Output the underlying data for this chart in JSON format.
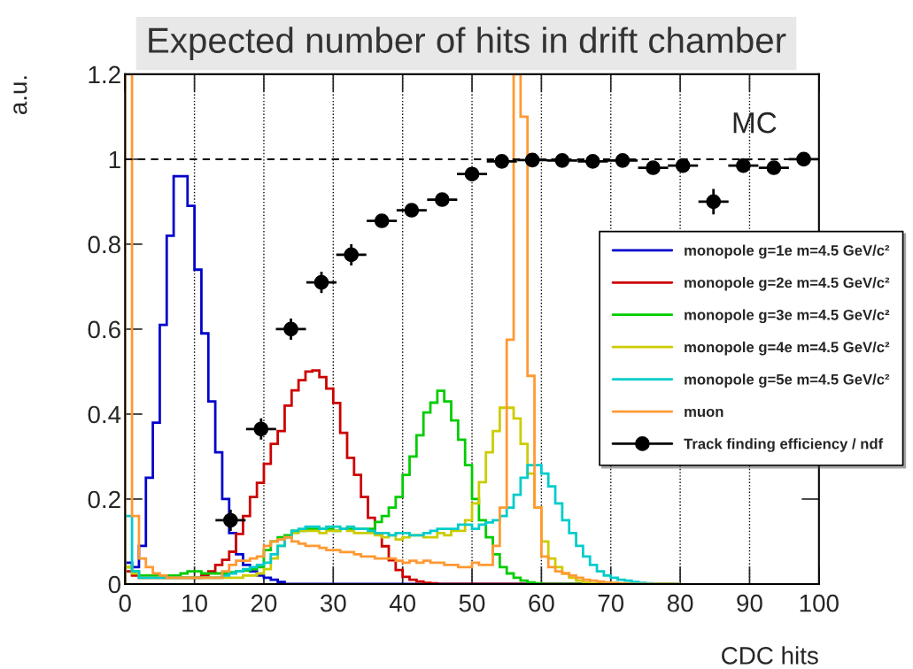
{
  "chart_data": {
    "type": "histogram",
    "title": "Expected number of hits in drift chamber",
    "xlabel": "CDC hits",
    "ylabel": "a.u.",
    "annotations": [
      "MC"
    ],
    "bins": [
      0,
      1,
      2,
      3,
      4,
      5,
      6,
      7,
      8,
      9,
      10,
      11,
      12,
      13,
      14,
      15,
      16,
      17,
      18,
      19,
      20,
      21,
      22,
      23,
      24,
      25,
      26,
      27,
      28,
      29,
      30,
      31,
      32,
      33,
      34,
      35,
      36,
      37,
      38,
      39,
      40,
      41,
      42,
      43,
      44,
      45,
      46,
      47,
      48,
      49,
      50,
      51,
      52,
      53,
      54,
      55,
      56,
      57,
      58,
      59,
      60,
      61,
      62,
      63,
      64,
      65,
      66,
      67,
      68,
      69,
      70,
      71,
      72,
      73,
      74,
      75,
      76,
      77,
      78,
      79,
      80
    ],
    "series": [
      {
        "name": "monopole g=1e m=4.5 GeV/c²",
        "color": "#0000cc",
        "values": [
          0.05,
          0.04,
          0.09,
          0.25,
          0.38,
          0.61,
          0.82,
          0.96,
          0.96,
          0.89,
          0.74,
          0.59,
          0.43,
          0.31,
          0.2,
          0.12,
          0.07,
          0.045,
          0.03,
          0.02,
          0.015,
          0.01,
          0.005,
          0,
          0,
          0,
          0,
          0,
          0,
          0,
          0,
          0,
          0,
          0,
          0,
          0,
          0,
          0,
          0,
          0,
          0,
          0,
          0,
          0,
          0,
          0,
          0,
          0,
          0,
          0,
          0,
          0,
          0,
          0,
          0,
          0,
          0,
          0,
          0,
          0,
          0,
          0,
          0,
          0,
          0,
          0,
          0,
          0,
          0,
          0,
          0,
          0,
          0,
          0,
          0,
          0,
          0,
          0,
          0,
          0
        ]
      },
      {
        "name": "monopole g=2e m=4.5 GeV/c²",
        "color": "#cc0000",
        "values": [
          0.03,
          0.02,
          0.015,
          0.015,
          0.015,
          0.015,
          0.015,
          0.015,
          0.015,
          0.015,
          0.015,
          0.02,
          0.03,
          0.045,
          0.057,
          0.076,
          0.118,
          0.16,
          0.205,
          0.238,
          0.283,
          0.33,
          0.36,
          0.42,
          0.456,
          0.48,
          0.5,
          0.503,
          0.487,
          0.46,
          0.426,
          0.356,
          0.297,
          0.257,
          0.205,
          0.156,
          0.12,
          0.089,
          0.056,
          0.033,
          0.017,
          0.01,
          0.006,
          0.003,
          0.002,
          0,
          0,
          0,
          0,
          0,
          0,
          0,
          0,
          0,
          0,
          0,
          0,
          0,
          0,
          0,
          0,
          0,
          0,
          0,
          0,
          0,
          0,
          0,
          0,
          0,
          0,
          0,
          0,
          0,
          0,
          0,
          0,
          0,
          0,
          0
        ]
      },
      {
        "name": "monopole g=3e m=4.5 GeV/c²",
        "color": "#00cc00",
        "values": [
          0.04,
          0.03,
          0.02,
          0.02,
          0.02,
          0.02,
          0.02,
          0.02,
          0.025,
          0.03,
          0.03,
          0.025,
          0.025,
          0.025,
          0.026,
          0.028,
          0.03,
          0.032,
          0.035,
          0.04,
          0.08,
          0.1,
          0.11,
          0.115,
          0.125,
          0.125,
          0.13,
          0.13,
          0.13,
          0.13,
          0.125,
          0.13,
          0.13,
          0.13,
          0.13,
          0.13,
          0.146,
          0.16,
          0.18,
          0.205,
          0.257,
          0.3,
          0.35,
          0.404,
          0.427,
          0.455,
          0.43,
          0.385,
          0.34,
          0.28,
          0.2,
          0.15,
          0.11,
          0.07,
          0.04,
          0.025,
          0.015,
          0.008,
          0.004,
          0.002,
          0,
          0,
          0,
          0,
          0,
          0,
          0,
          0,
          0,
          0,
          0,
          0,
          0,
          0,
          0,
          0,
          0,
          0,
          0,
          0
        ]
      },
      {
        "name": "monopole g=4e m=4.5 GeV/c²",
        "color": "#cccc00",
        "values": [
          0.04,
          0.025,
          0.015,
          0.015,
          0.015,
          0.015,
          0.015,
          0.015,
          0.015,
          0.015,
          0.015,
          0.015,
          0.015,
          0.015,
          0.015,
          0.015,
          0.015,
          0.02,
          0.02,
          0.025,
          0.035,
          0.06,
          0.09,
          0.11,
          0.12,
          0.125,
          0.125,
          0.125,
          0.12,
          0.125,
          0.125,
          0.13,
          0.125,
          0.12,
          0.12,
          0.12,
          0.115,
          0.11,
          0.115,
          0.105,
          0.11,
          0.115,
          0.115,
          0.11,
          0.11,
          0.12,
          0.115,
          0.125,
          0.125,
          0.15,
          0.19,
          0.24,
          0.31,
          0.36,
          0.415,
          0.415,
          0.39,
          0.33,
          0.26,
          0.18,
          0.1,
          0.06,
          0.04,
          0.025,
          0.015,
          0.008,
          0.004,
          0.002,
          0,
          0,
          0,
          0,
          0,
          0,
          0,
          0,
          0,
          0,
          0,
          0
        ]
      },
      {
        "name": "monopole g=5e m=4.5 GeV/c²",
        "color": "#00cccc",
        "values": [
          0.16,
          0.03,
          0.015,
          0.015,
          0.015,
          0.015,
          0.015,
          0.015,
          0.015,
          0.015,
          0.015,
          0.015,
          0.015,
          0.015,
          0.02,
          0.025,
          0.03,
          0.035,
          0.04,
          0.045,
          0.05,
          0.07,
          0.09,
          0.11,
          0.125,
          0.13,
          0.135,
          0.135,
          0.13,
          0.135,
          0.135,
          0.13,
          0.135,
          0.13,
          0.13,
          0.125,
          0.12,
          0.12,
          0.115,
          0.12,
          0.12,
          0.115,
          0.115,
          0.12,
          0.125,
          0.13,
          0.13,
          0.13,
          0.14,
          0.14,
          0.13,
          0.14,
          0.145,
          0.15,
          0.16,
          0.18,
          0.21,
          0.25,
          0.28,
          0.28,
          0.26,
          0.23,
          0.19,
          0.15,
          0.12,
          0.09,
          0.065,
          0.045,
          0.03,
          0.02,
          0.015,
          0.01,
          0.008,
          0.005,
          0.003,
          0.002,
          0,
          0,
          0,
          0
        ]
      },
      {
        "name": "muon",
        "color": "#ff9933",
        "values": [
          1.2,
          0.16,
          0.06,
          0.04,
          0.025,
          0.02,
          0.015,
          0.015,
          0.015,
          0.015,
          0.015,
          0.015,
          0.015,
          0.015,
          0.03,
          0.045,
          0.055,
          0.055,
          0.06,
          0.065,
          0.09,
          0.1,
          0.105,
          0.11,
          0.1,
          0.095,
          0.09,
          0.09,
          0.085,
          0.08,
          0.08,
          0.075,
          0.075,
          0.07,
          0.065,
          0.065,
          0.06,
          0.06,
          0.06,
          0.055,
          0.05,
          0.055,
          0.05,
          0.055,
          0.05,
          0.05,
          0.045,
          0.045,
          0.04,
          0.04,
          0.05,
          0.045,
          0.045,
          0.09,
          0.18,
          0.575,
          1.2,
          1.1,
          0.49,
          0.18,
          0.065,
          0.04,
          0.03,
          0.025,
          0.02,
          0.015,
          0.01,
          0.008,
          0.006,
          0.004,
          0.003,
          0.002,
          0,
          0,
          0,
          0,
          0,
          0,
          0,
          0
        ]
      },
      {
        "name": "Track finding efficiency / ndf",
        "type": "scatter",
        "color": "#000000",
        "marker": "circle",
        "x": [
          15.2,
          19.6,
          23.9,
          28.3,
          32.6,
          37.0,
          41.3,
          45.7,
          50.0,
          54.3,
          58.7,
          63.0,
          67.4,
          71.7,
          76.1,
          80.4,
          84.8,
          89.1,
          93.5,
          97.8
        ],
        "values": [
          0.15,
          0.365,
          0.6,
          0.71,
          0.775,
          0.855,
          0.88,
          0.905,
          0.965,
          0.995,
          0.998,
          0.997,
          0.995,
          0.997,
          0.98,
          0.985,
          0.9,
          0.985,
          0.98,
          1.0
        ],
        "errors": [
          0.025,
          0.025,
          0.025,
          0.025,
          0.025,
          0.015,
          0.012,
          0.01,
          0.008,
          0.006,
          0.005,
          0.005,
          0.005,
          0.005,
          0.008,
          0.008,
          0.03,
          0.01,
          0.008,
          0.008
        ],
        "xerrors": [
          2.17,
          2.17,
          2.17,
          2.17,
          2.17,
          2.17,
          2.17,
          2.17,
          2.17,
          2.17,
          2.17,
          2.17,
          2.17,
          2.17,
          2.17,
          2.17,
          2.17,
          2.17,
          2.17,
          2.17
        ]
      }
    ],
    "xlim": [
      0,
      100
    ],
    "ylim": [
      0,
      1.2
    ],
    "xticks": [
      0,
      10,
      20,
      30,
      40,
      50,
      60,
      70,
      80,
      90,
      100
    ],
    "yticks": [
      0,
      0.2,
      0.4,
      0.6,
      0.8,
      1,
      1.2
    ],
    "ref_lines": [
      {
        "axis": "y",
        "value": 1,
        "color": "#000000",
        "line_style": "dashed"
      }
    ],
    "grid": "x",
    "legend": "right"
  }
}
